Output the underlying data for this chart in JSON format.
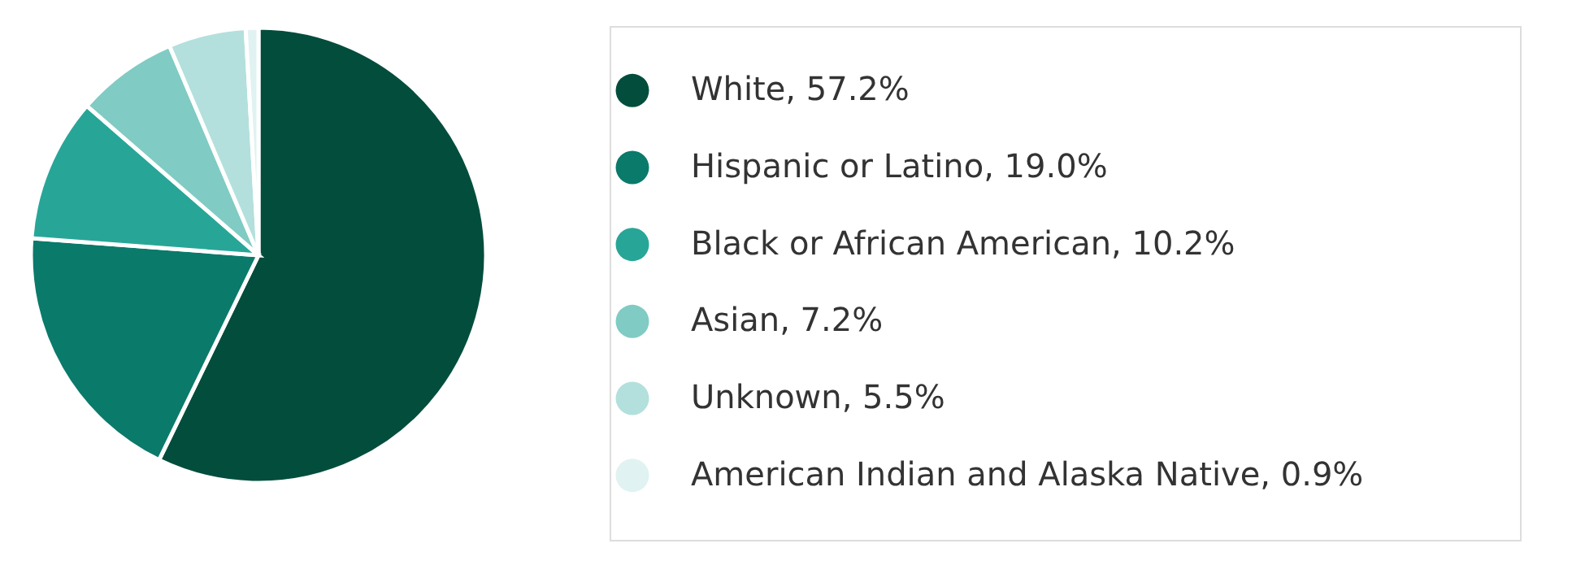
{
  "chart_data": {
    "type": "pie",
    "categories": [
      "White",
      "Hispanic or Latino",
      "Black or African American",
      "Asian",
      "Unknown",
      "American Indian and Alaska Native"
    ],
    "values": [
      57.2,
      19.0,
      10.2,
      7.2,
      5.5,
      0.9
    ],
    "value_labels": [
      "57.2%",
      "19.0%",
      "10.2%",
      "7.2%",
      "5.5%",
      "0.9%"
    ],
    "colors": [
      "#034d3d",
      "#0a7a6b",
      "#27a698",
      "#80cbc3",
      "#b3e0dc",
      "#e0f2f1"
    ],
    "legend": "right"
  }
}
